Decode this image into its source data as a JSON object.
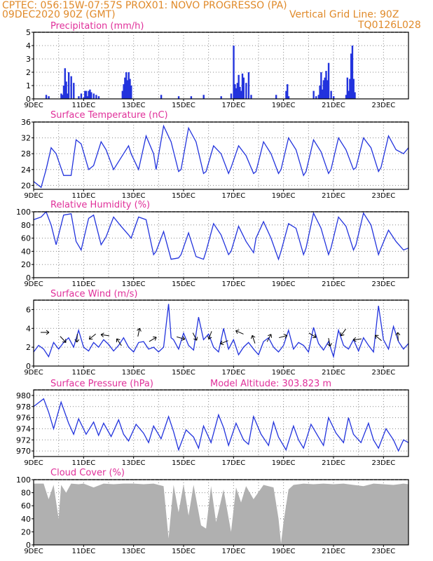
{
  "header": {
    "left1": "CPTEC:  056:15W-07:57S  PROX01: NOVO PROGRESSO (PA)",
    "left2": "09DEC2020 90Z (GMT)",
    "right2": "Vertical Grid Line: 90Z",
    "right3": "TQ0126L028"
  },
  "colors": {
    "title": "#e0309a",
    "header": "#e08a2a",
    "line": "#2233dd",
    "cloud": "#b0b0b0"
  },
  "chart_data": [
    {
      "id": "precip",
      "type": "bar",
      "title": "Precipitation (mm/h)",
      "ylim": [
        0,
        5
      ],
      "yticks": [
        0,
        1,
        2,
        3,
        4,
        5
      ],
      "xlim": [
        9,
        24
      ],
      "xticks": [
        "9DEC",
        "11DEC",
        "13DEC",
        "15DEC",
        "17DEC",
        "19DEC",
        "21DEC",
        "23DEC"
      ],
      "x": [
        9.5,
        9.6,
        10.1,
        10.15,
        10.2,
        10.25,
        10.3,
        10.35,
        10.4,
        10.5,
        10.6,
        10.8,
        10.9,
        11.0,
        11.05,
        11.1,
        11.15,
        11.2,
        11.25,
        11.3,
        11.4,
        11.5,
        11.6,
        12.55,
        12.6,
        12.65,
        12.7,
        12.75,
        12.8,
        12.85,
        12.9,
        14.1,
        14.8,
        15.3,
        15.8,
        16.5,
        16.9,
        17.0,
        17.05,
        17.1,
        17.15,
        17.2,
        17.25,
        17.3,
        17.35,
        17.4,
        17.5,
        17.6,
        17.7,
        18.7,
        19.1,
        19.15,
        19.2,
        20.2,
        20.3,
        20.4,
        20.45,
        20.5,
        20.55,
        20.6,
        20.65,
        20.7,
        20.75,
        20.8,
        20.9,
        21.0,
        21.5,
        21.55,
        21.6,
        21.65,
        21.7,
        21.75,
        21.8,
        21.85
      ],
      "values": [
        0.3,
        0.2,
        0.4,
        0.3,
        1.0,
        2.3,
        1.3,
        0.4,
        2.0,
        1.7,
        1.2,
        0.2,
        0.4,
        0.1,
        0.6,
        0.6,
        0.2,
        0.6,
        0.7,
        0.5,
        0.4,
        0.3,
        0.2,
        0.6,
        1.1,
        1.6,
        2.0,
        1.4,
        2.0,
        1.5,
        1.0,
        0.3,
        0.2,
        0.2,
        0.3,
        0.2,
        0.4,
        4.0,
        1.1,
        0.8,
        1.2,
        1.8,
        0.9,
        0.6,
        1.9,
        1.6,
        1.2,
        2.0,
        0.3,
        0.3,
        0.6,
        1.1,
        0.2,
        0.6,
        0.2,
        0.3,
        1.0,
        2.0,
        0.7,
        1.4,
        1.6,
        2.1,
        1.4,
        2.7,
        0.6,
        0.2,
        0.3,
        1.6,
        0.6,
        1.5,
        3.4,
        4.0,
        1.5,
        0.5
      ]
    },
    {
      "id": "temp",
      "type": "line",
      "title": "Surface Temperature (nC)",
      "ylim": [
        19,
        36
      ],
      "yticks": [
        20,
        24,
        28,
        32,
        36
      ],
      "xlim": [
        9,
        24
      ],
      "xticks": [
        "9DEC",
        "11DEC",
        "13DEC",
        "15DEC",
        "17DEC",
        "19DEC",
        "21DEC",
        "23DEC"
      ],
      "x": [
        9,
        9.3,
        9.5,
        9.7,
        9.9,
        10.2,
        10.5,
        10.7,
        10.9,
        11.2,
        11.4,
        11.7,
        11.9,
        12.2,
        12.5,
        12.8,
        12.9,
        13.2,
        13.5,
        13.8,
        13.9,
        14.2,
        14.5,
        14.8,
        14.9,
        15.2,
        15.5,
        15.8,
        15.9,
        16.2,
        16.5,
        16.8,
        16.9,
        17.2,
        17.5,
        17.8,
        17.9,
        18.2,
        18.5,
        18.8,
        18.9,
        19.2,
        19.5,
        19.8,
        19.9,
        20.2,
        20.5,
        20.8,
        20.9,
        21.2,
        21.5,
        21.8,
        21.9,
        22.2,
        22.5,
        22.8,
        22.9,
        23.2,
        23.5,
        23.8,
        24
      ],
      "values": [
        21,
        19.5,
        24,
        29.5,
        28,
        22.5,
        22.5,
        31.5,
        30.5,
        24,
        25,
        31,
        29,
        24,
        27,
        30,
        28,
        24,
        32.5,
        28,
        24,
        35,
        31,
        23.5,
        24,
        34.5,
        31,
        23,
        23.5,
        30,
        28,
        23,
        24.5,
        30,
        27.5,
        23,
        23.5,
        31,
        28,
        23,
        24,
        32,
        29,
        22.5,
        23.5,
        31.5,
        28.5,
        23,
        24,
        32,
        29,
        24,
        24.5,
        32,
        29.5,
        23.5,
        24.5,
        32.5,
        29,
        28,
        29.5
      ]
    },
    {
      "id": "rh",
      "type": "line",
      "title": "Relative Humidity (%)",
      "ylim": [
        0,
        100
      ],
      "yticks": [
        0,
        20,
        40,
        60,
        80,
        100
      ],
      "xlim": [
        9,
        24
      ],
      "xticks": [
        "9DEC",
        "11DEC",
        "13DEC",
        "15DEC",
        "17DEC",
        "19DEC",
        "21DEC",
        "23DEC"
      ],
      "x": [
        9,
        9.3,
        9.5,
        9.7,
        9.9,
        10.2,
        10.5,
        10.7,
        10.9,
        11.2,
        11.4,
        11.7,
        11.9,
        12.2,
        12.5,
        12.8,
        12.9,
        13.2,
        13.5,
        13.8,
        13.9,
        14.2,
        14.5,
        14.8,
        14.9,
        15.2,
        15.5,
        15.8,
        15.9,
        16.2,
        16.5,
        16.8,
        16.9,
        17.2,
        17.5,
        17.8,
        17.9,
        18.2,
        18.5,
        18.8,
        18.9,
        19.2,
        19.5,
        19.8,
        19.9,
        20.2,
        20.5,
        20.8,
        20.9,
        21.2,
        21.5,
        21.8,
        21.9,
        22.2,
        22.5,
        22.8,
        22.9,
        23.2,
        23.5,
        23.8,
        24
      ],
      "values": [
        88,
        92,
        100,
        80,
        50,
        95,
        97,
        55,
        42,
        90,
        95,
        50,
        62,
        92,
        78,
        65,
        60,
        92,
        88,
        35,
        40,
        70,
        28,
        30,
        35,
        68,
        32,
        28,
        40,
        82,
        65,
        35,
        40,
        78,
        55,
        38,
        60,
        85,
        60,
        28,
        40,
        82,
        75,
        35,
        45,
        98,
        75,
        35,
        45,
        92,
        78,
        42,
        50,
        98,
        80,
        35,
        45,
        72,
        55,
        42,
        45
      ]
    },
    {
      "id": "wind",
      "type": "line",
      "title": "Surface Wind (m/s)",
      "ylim": [
        0,
        7
      ],
      "yticks": [
        0,
        2,
        4,
        6
      ],
      "xlim": [
        9,
        24
      ],
      "xticks": [
        "9DEC",
        "11DEC",
        "13DEC",
        "15DEC",
        "17DEC",
        "19DEC",
        "21DEC",
        "23DEC"
      ],
      "x": [
        9,
        9.2,
        9.4,
        9.6,
        9.8,
        10.0,
        10.2,
        10.4,
        10.6,
        10.8,
        11.0,
        11.2,
        11.4,
        11.6,
        11.8,
        12.0,
        12.2,
        12.4,
        12.6,
        12.8,
        13.0,
        13.2,
        13.4,
        13.6,
        13.8,
        14.0,
        14.2,
        14.4,
        14.5,
        14.6,
        14.8,
        15.0,
        15.2,
        15.4,
        15.6,
        15.8,
        16.0,
        16.2,
        16.4,
        16.6,
        16.8,
        17.0,
        17.2,
        17.4,
        17.6,
        17.8,
        18.0,
        18.2,
        18.4,
        18.6,
        18.8,
        19.0,
        19.2,
        19.4,
        19.6,
        19.8,
        20.0,
        20.2,
        20.4,
        20.6,
        20.8,
        21.0,
        21.2,
        21.4,
        21.6,
        21.8,
        22.0,
        22.2,
        22.4,
        22.6,
        22.8,
        23.0,
        23.2,
        23.4,
        23.6,
        23.8,
        24
      ],
      "values": [
        1.5,
        2.2,
        1.8,
        1.0,
        2.5,
        1.8,
        2.5,
        3.0,
        2.0,
        3.8,
        2.0,
        1.6,
        2.5,
        2.0,
        2.8,
        2.3,
        1.6,
        2.2,
        3.0,
        2.0,
        1.5,
        2.5,
        2.6,
        1.8,
        2.0,
        1.5,
        2.0,
        6.6,
        3.0,
        2.8,
        1.8,
        3.5,
        2.2,
        1.7,
        5.2,
        2.8,
        3.4,
        2.0,
        1.5,
        4.0,
        1.8,
        2.8,
        1.2,
        2.0,
        2.5,
        1.8,
        1.2,
        2.6,
        3.0,
        2.0,
        1.5,
        2.2,
        3.8,
        1.8,
        2.5,
        2.2,
        1.5,
        4.1,
        2.4,
        1.7,
        2.6,
        1.0,
        3.8,
        2.2,
        1.8,
        2.8,
        1.6,
        3.0,
        2.2,
        1.5,
        6.4,
        2.8,
        1.8,
        4.2,
        2.6,
        1.8,
        2.4
      ]
    },
    {
      "id": "pres",
      "type": "line",
      "title": "Surface Pressure (hPa)",
      "annotation": "Model Altitude: 303.823 m",
      "ylim": [
        969,
        981
      ],
      "yticks": [
        970,
        972,
        974,
        976,
        978,
        980
      ],
      "xlim": [
        9,
        24
      ],
      "xticks": [
        "9DEC",
        "11DEC",
        "13DEC",
        "15DEC",
        "17DEC",
        "19DEC",
        "21DEC",
        "23DEC"
      ],
      "x": [
        9,
        9.2,
        9.4,
        9.6,
        9.8,
        10.1,
        10.4,
        10.6,
        10.8,
        11.1,
        11.4,
        11.6,
        11.8,
        12.1,
        12.4,
        12.6,
        12.8,
        13.1,
        13.4,
        13.6,
        13.8,
        14.1,
        14.4,
        14.6,
        14.8,
        15.1,
        15.4,
        15.6,
        15.8,
        16.1,
        16.4,
        16.6,
        16.8,
        17.1,
        17.4,
        17.6,
        17.8,
        18.1,
        18.4,
        18.6,
        18.8,
        19.1,
        19.4,
        19.6,
        19.8,
        20.1,
        20.4,
        20.6,
        20.8,
        21.1,
        21.4,
        21.6,
        21.8,
        22.1,
        22.4,
        22.6,
        22.8,
        23.1,
        23.4,
        23.6,
        23.8,
        24
      ],
      "values": [
        978,
        978.7,
        979.4,
        977,
        974,
        978.8,
        975,
        973,
        975.8,
        973,
        975.2,
        972.8,
        975,
        972.6,
        975.6,
        973,
        971.8,
        974.8,
        973.2,
        971.5,
        974.5,
        972.2,
        976.2,
        973.5,
        970.2,
        973.8,
        972.5,
        970.5,
        974.5,
        971.5,
        976.5,
        974.2,
        971,
        975,
        972,
        971.2,
        976.2,
        973,
        971,
        975.2,
        972.5,
        970.2,
        974.5,
        972,
        970.5,
        974.8,
        972.5,
        971,
        976,
        973.2,
        971.5,
        976,
        973,
        971.5,
        975,
        972,
        970.5,
        974,
        972,
        970,
        972,
        971.5
      ]
    },
    {
      "id": "cloud",
      "type": "area",
      "title": "Cloud Cover (%)",
      "ylim": [
        0,
        100
      ],
      "yticks": [
        0,
        20,
        40,
        60,
        80,
        100
      ],
      "xlim": [
        9,
        24
      ],
      "xticks": [
        "9DEC",
        "11DEC",
        "13DEC",
        "15DEC",
        "17DEC",
        "19DEC",
        "21DEC",
        "23DEC"
      ],
      "x": [
        9,
        9.4,
        9.6,
        9.8,
        10.0,
        10.1,
        10.3,
        10.5,
        10.8,
        11.0,
        11.4,
        11.8,
        12.2,
        12.6,
        13.0,
        13.4,
        13.8,
        14.2,
        14.4,
        14.6,
        14.8,
        15.0,
        15.2,
        15.4,
        15.7,
        15.9,
        16.1,
        16.3,
        16.6,
        16.9,
        17.1,
        17.3,
        17.5,
        17.8,
        18.2,
        18.6,
        18.8,
        18.9,
        19.0,
        19.2,
        19.4,
        19.8,
        20.2,
        20.6,
        21.0,
        21.4,
        21.8,
        22.2,
        22.6,
        23.0,
        23.4,
        23.8,
        24
      ],
      "values": [
        94,
        94,
        70,
        92,
        40,
        92,
        80,
        94,
        93,
        94,
        88,
        94,
        93,
        94,
        94,
        93,
        94,
        90,
        10,
        92,
        50,
        93,
        45,
        92,
        30,
        25,
        90,
        35,
        85,
        20,
        88,
        65,
        90,
        70,
        92,
        88,
        40,
        2,
        35,
        85,
        92,
        94,
        93,
        94,
        93,
        94,
        92,
        90,
        94,
        93,
        92,
        94,
        93
      ]
    }
  ]
}
